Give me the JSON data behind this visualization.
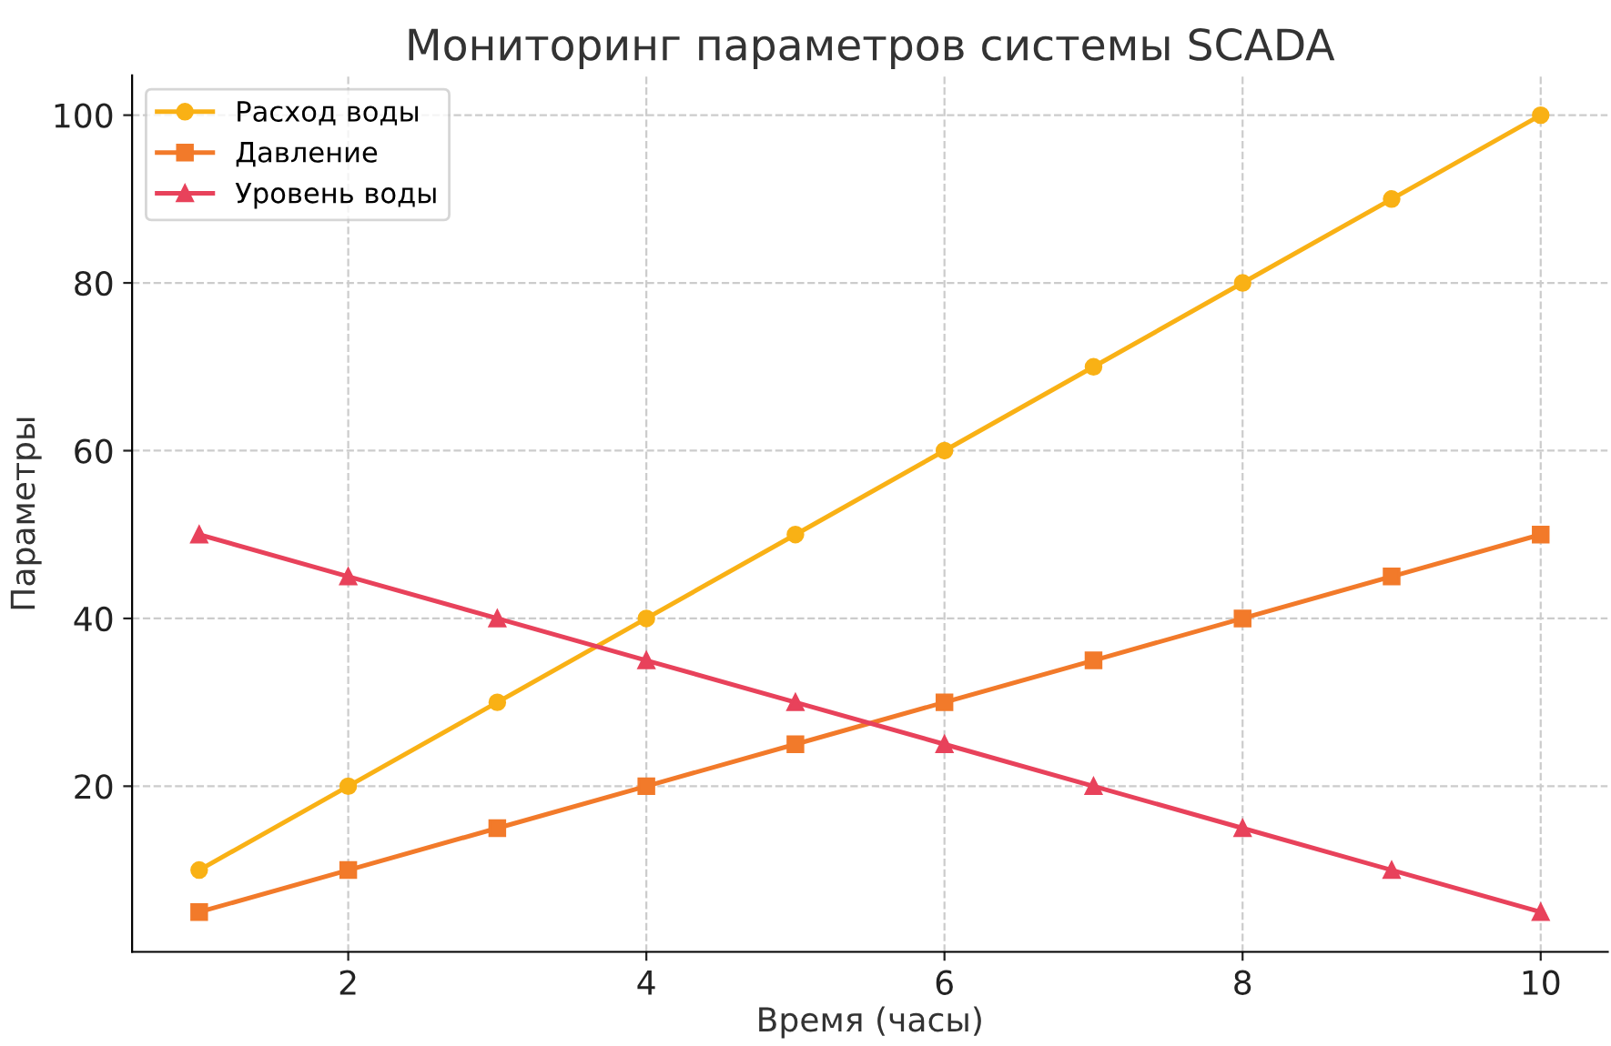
{
  "chart_data": {
    "type": "line",
    "title": "Мониторинг параметров системы SCADA",
    "xlabel": "Время (часы)",
    "ylabel": "Параметры",
    "x": [
      1,
      2,
      3,
      4,
      5,
      6,
      7,
      8,
      9,
      10
    ],
    "series": [
      {
        "name": "Расход воды",
        "color": "#f9b115",
        "marker": "circle",
        "values": [
          10,
          20,
          30,
          40,
          50,
          60,
          70,
          80,
          90,
          100
        ]
      },
      {
        "name": "Давление",
        "color": "#f27a2a",
        "marker": "square",
        "values": [
          5,
          10,
          15,
          20,
          25,
          30,
          35,
          40,
          45,
          50
        ]
      },
      {
        "name": "Уровень воды",
        "color": "#e8425b",
        "marker": "triangle",
        "values": [
          50,
          45,
          40,
          35,
          30,
          25,
          20,
          15,
          10,
          5
        ]
      }
    ],
    "xlim": [
      0.55,
      10.45
    ],
    "ylim": [
      0.25,
      104.75
    ],
    "xticks": [
      2,
      4,
      6,
      8,
      10
    ],
    "yticks": [
      20,
      40,
      60,
      80,
      100
    ],
    "grid": true,
    "legend": "top left",
    "line_style": "solid"
  }
}
